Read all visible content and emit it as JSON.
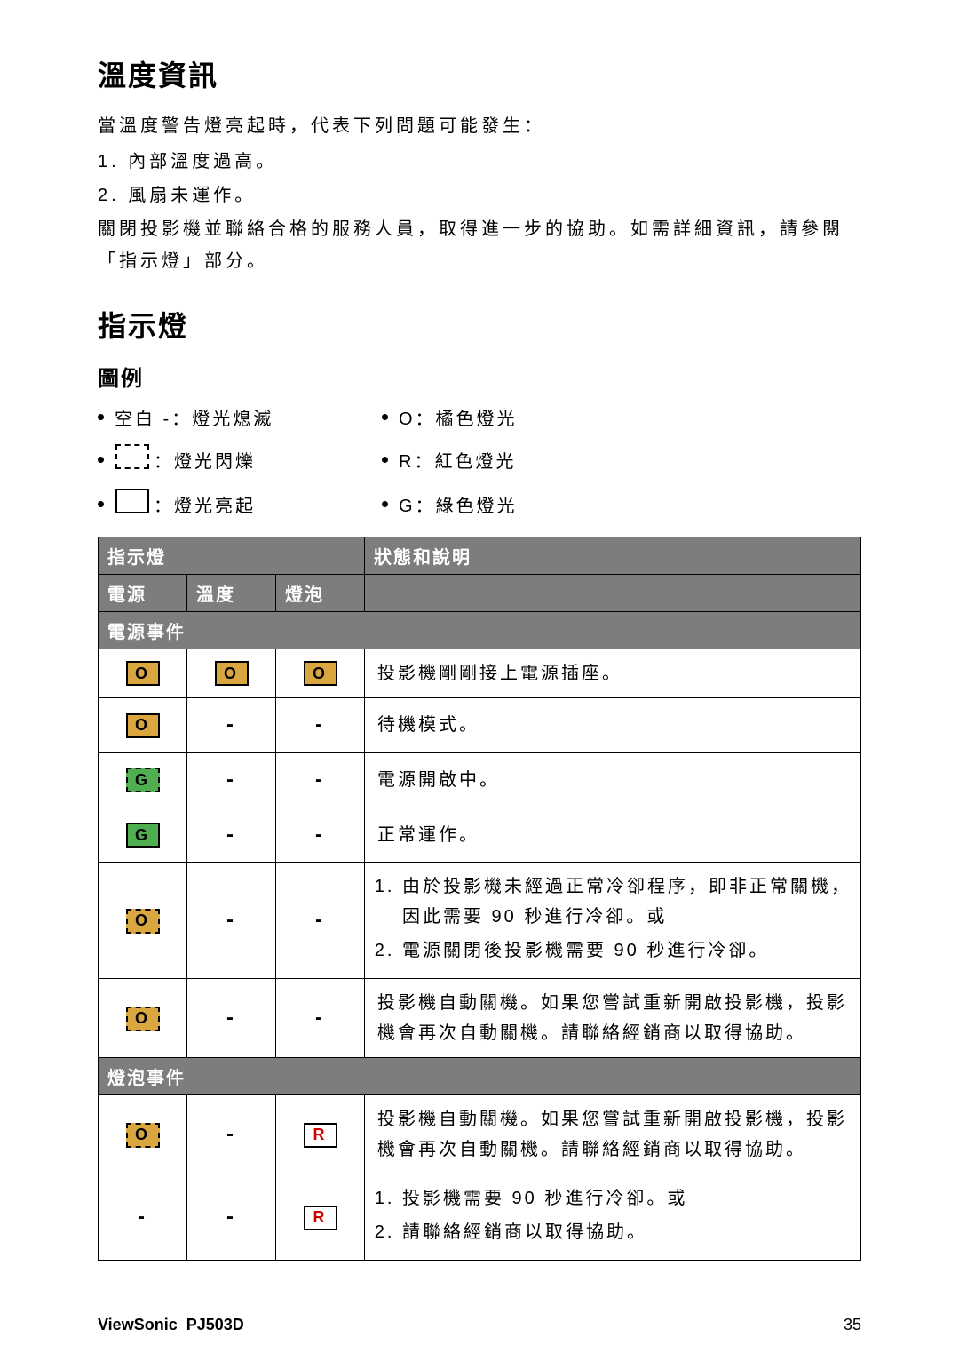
{
  "colors": {
    "orange": "#d9a63f",
    "green": "#4fae4f",
    "red": "#cc0000",
    "header_bg": "#7d7d7d",
    "header_fg": "#ffffff",
    "text": "#000000",
    "page_bg": "#ffffff"
  },
  "section1": {
    "title": "溫度資訊",
    "intro": "當溫度警告燈亮起時，代表下列問題可能發生：",
    "item1": "1.  內部溫度過高。",
    "item2": "2.  風扇未運作。",
    "note": "關閉投影機並聯絡合格的服務人員，取得進一步的協助。如需詳細資訊，請參閱「指示燈」部分。"
  },
  "section2": {
    "title": "指示燈",
    "legend_title": "圖例",
    "legend": {
      "blank": "空白 -：燈光熄滅",
      "flash": "：燈光閃爍",
      "on": "：燈光亮起",
      "o": "O：橘色燈光",
      "r": "R：紅色燈光",
      "g": "G：綠色燈光"
    }
  },
  "table": {
    "hdr_indicator": "指示燈",
    "hdr_status": "狀態和說明",
    "hdr_power": "電源",
    "hdr_temp": "溫度",
    "hdr_lamp": "燈泡",
    "sec_power": "電源事件",
    "sec_lamp": "燈泡事件",
    "rows": {
      "r1": {
        "desc": "投影機剛剛接上電源插座。"
      },
      "r2": {
        "desc": "待機模式。"
      },
      "r3": {
        "desc": "電源開啟中。"
      },
      "r4": {
        "desc": "正常運作。"
      },
      "r5": {
        "li1": "由於投影機未經過正常冷卻程序，即非正常關機，因此需要 90 秒進行冷卻。或",
        "li2": "電源關閉後投影機需要 90 秒進行冷卻。"
      },
      "r6": {
        "desc": "投影機自動關機。如果您嘗試重新開啟投影機，投影機會再次自動關機。請聯絡經銷商以取得協助。"
      },
      "r7": {
        "desc": "投影機自動關機。如果您嘗試重新開啟投影機，投影機會再次自動關機。請聯絡經銷商以取得協助。"
      },
      "r8": {
        "li1": "投影機需要 90 秒進行冷卻。或",
        "li2": "請聯絡經銷商以取得協助。"
      }
    }
  },
  "footer": {
    "brand": "ViewSonic",
    "model": "PJ503D",
    "page": "35"
  },
  "glyphs": {
    "O": "O",
    "G": "G",
    "R": "R",
    "dash": "-"
  }
}
